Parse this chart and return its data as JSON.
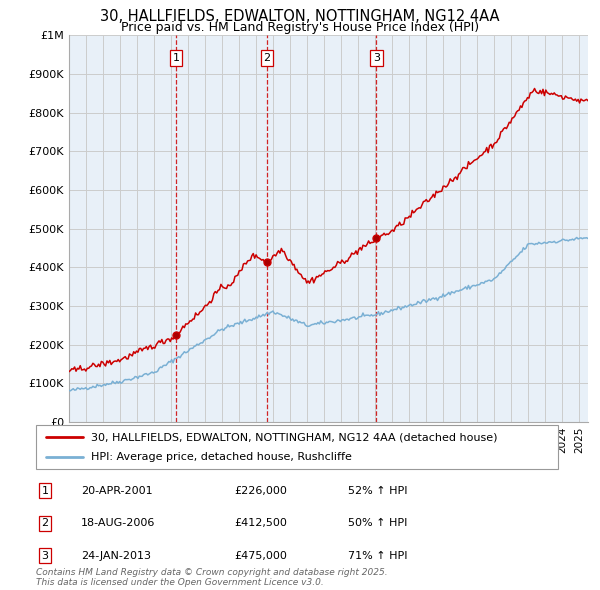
{
  "title_line1": "30, HALLFIELDS, EDWALTON, NOTTINGHAM, NG12 4AA",
  "title_line2": "Price paid vs. HM Land Registry's House Price Index (HPI)",
  "title_fontsize": 10.5,
  "subtitle_fontsize": 9,
  "ylabel_ticks": [
    "£0",
    "£100K",
    "£200K",
    "£300K",
    "£400K",
    "£500K",
    "£600K",
    "£700K",
    "£800K",
    "£900K",
    "£1M"
  ],
  "ytick_values": [
    0,
    100000,
    200000,
    300000,
    400000,
    500000,
    600000,
    700000,
    800000,
    900000,
    1000000
  ],
  "xmin": 1995,
  "xmax": 2025.5,
  "ymin": 0,
  "ymax": 1000000,
  "sale_dates": [
    2001.3,
    2006.63,
    2013.07
  ],
  "sale_prices": [
    226000,
    412500,
    475000
  ],
  "sale_labels": [
    "1",
    "2",
    "3"
  ],
  "red_color": "#cc0000",
  "blue_color": "#7ab0d4",
  "vline_color": "#cc0000",
  "grid_color": "#cccccc",
  "plot_bg_color": "#e8f0f8",
  "legend_entry1": "30, HALLFIELDS, EDWALTON, NOTTINGHAM, NG12 4AA (detached house)",
  "legend_entry2": "HPI: Average price, detached house, Rushcliffe",
  "table_rows": [
    {
      "num": "1",
      "date": "20-APR-2001",
      "price": "£226,000",
      "change": "52% ↑ HPI"
    },
    {
      "num": "2",
      "date": "18-AUG-2006",
      "price": "£412,500",
      "change": "50% ↑ HPI"
    },
    {
      "num": "3",
      "date": "24-JAN-2013",
      "price": "£475,000",
      "change": "71% ↑ HPI"
    }
  ],
  "footer_text": "Contains HM Land Registry data © Crown copyright and database right 2025.\nThis data is licensed under the Open Government Licence v3.0.",
  "background_color": "#ffffff"
}
